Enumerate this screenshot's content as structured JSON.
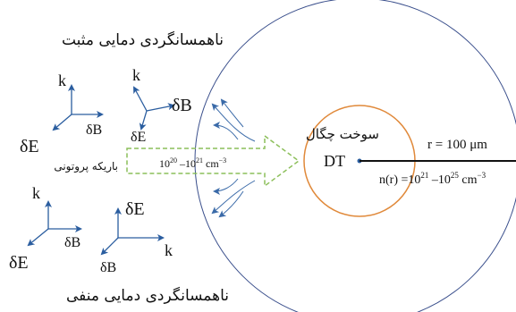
{
  "labels": {
    "top_caption": "ناهمسانگردی دمایی مثبت",
    "bottom_caption": "ناهمسانگردی دمایی منفی",
    "beam_label": "باریکه پروتونی",
    "beam_density_base1": "10",
    "beam_density_exp1": "20",
    "beam_density_dash": " –10",
    "beam_density_exp2": "21",
    "beam_density_unit": " cm",
    "beam_density_unit_exp": "−3",
    "fuel_label_line1": "سوخت چگال",
    "fuel_label_line2": "DT",
    "radius_label": "r = 100 μm",
    "density_prefix": "n(r) =10",
    "density_exp1": "21",
    "density_dash": " –10",
    "density_exp2": "25",
    "density_unit": " cm",
    "density_unit_exp": "−3"
  },
  "triads": [
    {
      "id": "triad-1",
      "k": "k",
      "e": "δE",
      "b": "δB"
    },
    {
      "id": "triad-2",
      "k": "k",
      "e": "δE",
      "b": "δB"
    },
    {
      "id": "triad-3",
      "k": "k",
      "e": "δE",
      "b": "δB"
    },
    {
      "id": "triad-4",
      "k": "k",
      "e": "δE",
      "b": "δB"
    }
  ],
  "colors": {
    "outer_circle": "#3a4f8c",
    "inner_circle": "#e0893a",
    "beam_arrow": "#8cbf5a",
    "flow_arrows": "#3a6aa8",
    "axes": "#2a5d9f",
    "text": "#111111"
  }
}
